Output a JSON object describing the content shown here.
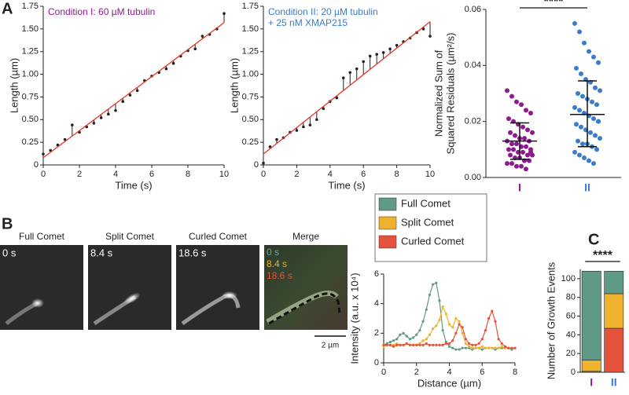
{
  "panel_labels": [
    "A",
    "B",
    "C"
  ],
  "images": {
    "labels": [
      "Full Comet",
      "Split Comet",
      "Curled Comet",
      "Merge"
    ],
    "times": [
      "0 s",
      "8.4 s",
      "18.6 s"
    ],
    "merge_times": [
      "0 s",
      "8.4 s",
      "18.6 s"
    ],
    "scale_bar": "2 µm"
  },
  "chart_data": [
    {
      "type": "stem",
      "annotation": [
        "Condition I: 60 µM tubulin"
      ],
      "annotation_color": "#8e1a8e",
      "x_label": "Time (s)",
      "y_label": [
        "Length (µm)"
      ],
      "x": [
        0,
        0.4,
        0.8,
        1.2,
        1.6,
        2.0,
        2.4,
        2.8,
        3.2,
        3.6,
        4.0,
        4.4,
        4.8,
        5.2,
        5.6,
        6.0,
        6.4,
        6.8,
        7.2,
        7.6,
        8.0,
        8.4,
        8.8,
        9.2,
        9.6,
        10.0
      ],
      "values": [
        0.12,
        0.16,
        0.22,
        0.28,
        0.44,
        0.36,
        0.42,
        0.46,
        0.52,
        0.56,
        0.6,
        0.7,
        0.77,
        0.82,
        0.93,
        0.98,
        1.02,
        1.06,
        1.12,
        1.2,
        1.26,
        1.28,
        1.42,
        1.44,
        1.5,
        1.67
      ],
      "color": "#222222",
      "fit": {
        "x": [
          0,
          10
        ],
        "values": [
          0.08,
          1.57
        ],
        "color": "#e8322a"
      },
      "xlim": [
        0,
        10
      ],
      "xticks": [
        0,
        2,
        4,
        6,
        8,
        10
      ],
      "ylim": [
        0,
        1.75
      ],
      "yticks": [
        0,
        0.25,
        {
          "value": 0.5,
          "label": "0.50"
        },
        0.75,
        {
          "value": 1,
          "label": "1.00"
        },
        1.25,
        {
          "value": 1.5,
          "label": "1.50"
        },
        1.75
      ]
    },
    {
      "type": "stem",
      "annotation": [
        "Condition II: 20 µM tubulin",
        "+ 25 nM XMAP215"
      ],
      "annotation_color": "#3a7cc8",
      "x_label": "Time (s)",
      "y_label": [
        "Length (µm)"
      ],
      "x": [
        0,
        0.4,
        0.8,
        1.2,
        1.6,
        2.0,
        2.4,
        2.8,
        3.2,
        3.6,
        4.0,
        4.4,
        4.8,
        5.2,
        5.6,
        6.0,
        6.4,
        6.8,
        7.2,
        7.6,
        8.0,
        8.4,
        8.8,
        9.2,
        9.6,
        10.0
      ],
      "values": [
        0.02,
        0.2,
        0.28,
        0.3,
        0.36,
        0.38,
        0.42,
        0.44,
        0.5,
        0.62,
        0.7,
        0.74,
        0.96,
        1.02,
        1.06,
        1.14,
        1.2,
        1.22,
        1.24,
        1.28,
        1.32,
        1.36,
        1.4,
        1.46,
        1.5,
        1.42
      ],
      "color": "#222222",
      "fit": {
        "x": [
          0,
          10
        ],
        "values": [
          0.12,
          1.58
        ],
        "color": "#e8322a"
      },
      "xlim": [
        0,
        10
      ],
      "xticks": [
        0,
        2,
        4,
        6,
        8,
        10
      ],
      "ylim": [
        0,
        1.75
      ],
      "yticks": [
        0,
        0.25,
        {
          "value": 0.5,
          "label": "0.50"
        },
        0.75,
        {
          "value": 1,
          "label": "1.00"
        },
        1.25,
        {
          "value": 1.5,
          "label": "1.50"
        },
        1.75
      ]
    },
    {
      "type": "strip",
      "y_label": [
        "Normalized Sum of",
        "Squared Residuals (µm²/s)"
      ],
      "categories": [
        "I",
        "II"
      ],
      "colors": [
        "#8e1a8e",
        "#3a7cc8"
      ],
      "values": [
        [
          0.031,
          0.029,
          0.027,
          0.026,
          0.024,
          0.023,
          0.021,
          0.02,
          0.019,
          0.018,
          0.017,
          0.016,
          0.016,
          0.015,
          0.014,
          0.014,
          0.013,
          0.013,
          0.012,
          0.012,
          0.011,
          0.011,
          0.01,
          0.01,
          0.01,
          0.009,
          0.009,
          0.008,
          0.008,
          0.008,
          0.007,
          0.007,
          0.006,
          0.006,
          0.005,
          0.005,
          0.004,
          0.004,
          0.003,
          0.009
        ],
        [
          0.055,
          0.052,
          0.048,
          0.045,
          0.043,
          0.041,
          0.039,
          0.037,
          0.035,
          0.034,
          0.032,
          0.031,
          0.03,
          0.029,
          0.028,
          0.027,
          0.026,
          0.025,
          0.024,
          0.023,
          0.022,
          0.021,
          0.02,
          0.019,
          0.018,
          0.017,
          0.016,
          0.015,
          0.014,
          0.013,
          0.012,
          0.012,
          0.011,
          0.01,
          0.009,
          0.008,
          0.007,
          0.006,
          0.005,
          0.02
        ]
      ],
      "mean": [
        0.013,
        0.0225
      ],
      "error_low": [
        0.0065,
        0.011
      ],
      "error_high": [
        0.0195,
        0.0345
      ],
      "significance": "****",
      "ylim": [
        0,
        0.06
      ],
      "yticks": [
        {
          "value": 0,
          "label": "0.00"
        },
        0.02,
        0.04,
        0.06
      ]
    },
    {
      "type": "line",
      "x_label": "Distance (µm)",
      "y_label": [
        "Intensity (a.u. x 10⁴)"
      ],
      "x": [
        0,
        0.2,
        0.4,
        0.6,
        0.8,
        1.0,
        1.2,
        1.4,
        1.6,
        1.8,
        2.0,
        2.2,
        2.4,
        2.6,
        2.8,
        3.0,
        3.2,
        3.4,
        3.6,
        3.8,
        4.0,
        4.2,
        4.4,
        4.6,
        4.8,
        5.0,
        5.2,
        5.4,
        5.6,
        5.8,
        6.0,
        6.2,
        6.4,
        6.6,
        6.8,
        7.0,
        7.2,
        7.4,
        7.6,
        7.8,
        8.0
      ],
      "series": [
        {
          "name": "Full Comet",
          "color": "#5f9a87",
          "values": [
            1.2,
            1.3,
            1.4,
            1.5,
            1.6,
            1.9,
            2.0,
            1.8,
            1.6,
            1.7,
            1.9,
            2.2,
            2.8,
            3.6,
            4.6,
            5.3,
            5.4,
            4.2,
            2.2,
            1.4,
            1.1,
            1.0,
            0.9,
            0.9,
            1.0,
            1.0,
            1.0,
            0.9,
            1.0,
            1.0,
            0.9,
            1.0,
            1.0,
            1.0,
            0.9,
            1.0,
            1.0,
            1.0,
            1.0,
            0.9,
            1.0
          ]
        },
        {
          "name": "Split Comet",
          "color": "#eeb32e",
          "values": [
            1.1,
            1.2,
            1.2,
            1.2,
            1.3,
            1.2,
            1.2,
            1.3,
            1.2,
            1.2,
            1.2,
            1.3,
            1.5,
            1.6,
            1.9,
            2.3,
            2.5,
            2.9,
            3.8,
            3.3,
            2.6,
            2.4,
            3.0,
            2.8,
            2.0,
            1.3,
            1.1,
            1.0,
            1.0,
            1.0,
            1.1,
            1.0,
            1.0,
            1.0,
            1.0,
            1.0,
            1.1,
            1.0,
            1.0,
            1.0,
            1.0
          ]
        },
        {
          "name": "Curled Comet",
          "color": "#e4533b",
          "values": [
            1.2,
            1.2,
            1.2,
            1.1,
            1.2,
            1.2,
            1.2,
            1.3,
            1.2,
            1.2,
            1.2,
            1.2,
            1.2,
            1.3,
            1.2,
            1.2,
            1.2,
            1.2,
            1.2,
            1.3,
            1.3,
            1.5,
            2.0,
            2.6,
            2.4,
            1.6,
            1.3,
            1.2,
            1.2,
            1.3,
            1.6,
            2.2,
            3.0,
            3.5,
            2.8,
            1.6,
            1.3,
            1.1,
            1.0,
            1.0,
            1.0
          ]
        }
      ],
      "xlim": [
        0,
        8
      ],
      "xticks": [
        0,
        2,
        4,
        6,
        8
      ],
      "ylim": [
        0,
        6
      ],
      "yticks": [
        0,
        2,
        4,
        6
      ]
    },
    {
      "type": "stacked_bar",
      "y_label": [
        "Number of Growth Events"
      ],
      "significance": "****",
      "categories": [
        "I",
        "II"
      ],
      "category_colors": [
        "#8e1a8e",
        "#3a7cc8"
      ],
      "series": [
        {
          "color": "#e4533b",
          "values": [
            1,
            47
          ]
        },
        {
          "color": "#eeb32e",
          "values": [
            12,
            37
          ]
        },
        {
          "color": "#5f9a87",
          "values": [
            95,
            24
          ]
        }
      ],
      "ylim": [
        0,
        110
      ],
      "yticks": [
        0,
        20,
        40,
        60,
        80,
        100
      ]
    }
  ]
}
